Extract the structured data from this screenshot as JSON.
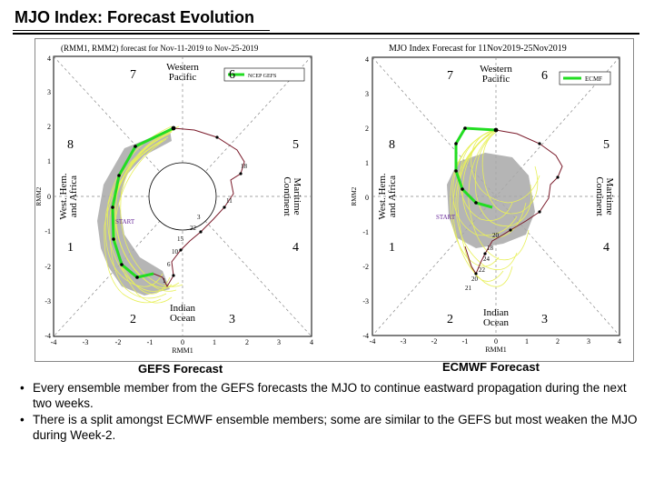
{
  "title": "MJO Index: Forecast Evolution",
  "left_panel": {
    "header": "(RMM1, RMM2) forecast for Nov-11-2019 to Nov-25-2019",
    "legend": "NCEP GEFS",
    "caption": "GEFS Forecast",
    "xlabel": "RMM1",
    "ylabel": "RMM2",
    "x_ticks": [
      "-4",
      "-3",
      "-2",
      "-1",
      "0",
      "1",
      "2",
      "3",
      "4"
    ],
    "y_ticks": [
      "4",
      "3",
      "2",
      "1",
      "0",
      "-1",
      "-2",
      "-3",
      "-4"
    ],
    "start_label": "START",
    "phases": [
      "1",
      "2",
      "3",
      "4",
      "5",
      "6",
      "7",
      "8"
    ],
    "regions": {
      "top_1": "Western",
      "top_2": "Pacific",
      "bottom_1": "Indian",
      "bottom_2": "Ocean",
      "left_1": "West. Hem.",
      "left_2": "and Africa",
      "right_1": "Maritime",
      "right_2": "Continent"
    },
    "day_labels": [
      "18",
      "11",
      "3",
      "22",
      "15",
      "10",
      "6",
      "1"
    ]
  },
  "right_panel": {
    "header": "MJO Index Forecast for 11Nov2019-25Nov2019",
    "legend": "ECMF",
    "caption": "ECMWF Forecast",
    "xlabel": "RMM1",
    "ylabel": "RMM2",
    "x_ticks": [
      "-4",
      "-3",
      "-2",
      "-1",
      "0",
      "1",
      "2",
      "3",
      "4"
    ],
    "y_ticks": [
      "4",
      "3",
      "2",
      "1",
      "0",
      "-1",
      "-2",
      "-3",
      "-4"
    ],
    "start_label": "START",
    "phases": [
      "1",
      "2",
      "3",
      "4",
      "5",
      "6",
      "7",
      "8"
    ],
    "regions": {
      "top_1": "Western",
      "top_2": "Pacific",
      "bottom_1": "Indian",
      "bottom_2": "Ocean",
      "left_1": "West. Hem.",
      "left_2": "and Africa",
      "right_1": "Maritime",
      "right_2": "Continent"
    },
    "day_labels": [
      "20",
      "18",
      "24",
      "22",
      "20",
      "21"
    ]
  },
  "bullets": [
    "Every ensemble member from the GEFS forecasts the MJO to continue eastward propagation during the next two weeks.",
    "There is a split amongst ECMWF ensemble members; some are similar to the GEFS but most weaken the MJO during Week-2."
  ],
  "bullet_symbol": "•",
  "colors": {
    "ensemble": "#e8f05a",
    "mean_line": "#22dd22",
    "spread": "#a8a8a8",
    "observed": "#7a1a2a",
    "start_label": "#6a2a9a"
  }
}
